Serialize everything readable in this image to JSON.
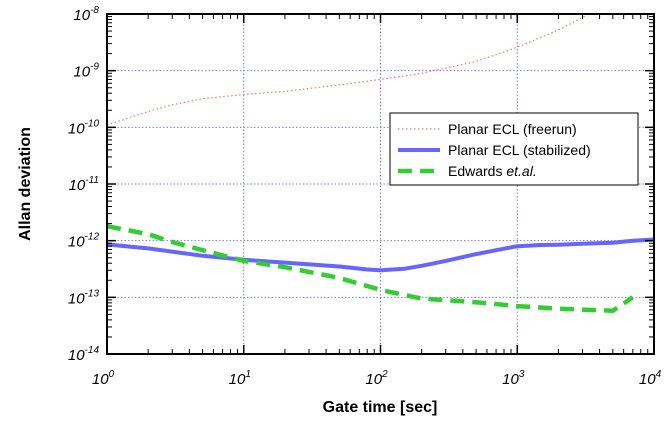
{
  "chart_data": {
    "type": "line",
    "title": "",
    "xlabel": "Gate time [sec]",
    "ylabel": "Allan deviation",
    "xscale": "log",
    "yscale": "log",
    "xlim": [
      1,
      10000
    ],
    "ylim": [
      1e-14,
      1e-08
    ],
    "grid": true,
    "legend_position": "right",
    "x_tick_labels": [
      {
        "base": "10",
        "exp": "0"
      },
      {
        "base": "10",
        "exp": "1"
      },
      {
        "base": "10",
        "exp": "2"
      },
      {
        "base": "10",
        "exp": "3"
      },
      {
        "base": "10",
        "exp": "4"
      }
    ],
    "y_tick_labels": [
      {
        "base": "10",
        "exp": "-14"
      },
      {
        "base": "10",
        "exp": "-13"
      },
      {
        "base": "10",
        "exp": "-12"
      },
      {
        "base": "10",
        "exp": "-11"
      },
      {
        "base": "10",
        "exp": "-10"
      },
      {
        "base": "10",
        "exp": "-9"
      },
      {
        "base": "10",
        "exp": "-8"
      }
    ],
    "series": [
      {
        "name": "Planar ECL (freerun)",
        "color": "#e87878",
        "style": "dotted",
        "x": [
          1,
          2,
          3,
          5,
          10,
          20,
          50,
          100,
          200,
          500,
          1000,
          2000,
          3200
        ],
        "y": [
          1.1e-10,
          1.9e-10,
          2.5e-10,
          3.2e-10,
          3.8e-10,
          4.3e-10,
          5.6e-10,
          7e-10,
          9e-10,
          1.45e-09,
          2.6e-09,
          5.2e-09,
          9.5e-09
        ]
      },
      {
        "name": "Planar ECL (stabilized)",
        "color": "#6666ff",
        "style": "solid",
        "x": [
          1,
          2,
          5,
          10,
          20,
          50,
          80,
          100,
          150,
          200,
          300,
          500,
          700,
          1000,
          1500,
          2000,
          3000,
          5000,
          7000,
          10000
        ],
        "y": [
          8.6e-13,
          7.3e-13,
          5.4e-13,
          4.6e-13,
          4.1e-13,
          3.5e-13,
          3.1e-13,
          3e-13,
          3.2e-13,
          3.6e-13,
          4.4e-13,
          5.8e-13,
          6.8e-13,
          8e-13,
          8.4e-13,
          8.5e-13,
          8.8e-13,
          9.2e-13,
          1e-12,
          1.05e-12
        ]
      },
      {
        "name": "Edwards et.al.",
        "name_parts": [
          "Edwards ",
          "et.al."
        ],
        "color": "#33cc33",
        "style": "dashed",
        "x": [
          1,
          2,
          3,
          5,
          10,
          20,
          50,
          100,
          200,
          500,
          1000,
          2000,
          5000,
          7000
        ],
        "y": [
          1.8e-12,
          1.3e-12,
          9.5e-13,
          6.8e-13,
          4.4e-13,
          3.4e-13,
          2.2e-13,
          1.35e-13,
          9.5e-14,
          8.2e-14,
          7e-14,
          6.3e-14,
          5.8e-14,
          1e-13
        ]
      }
    ]
  }
}
